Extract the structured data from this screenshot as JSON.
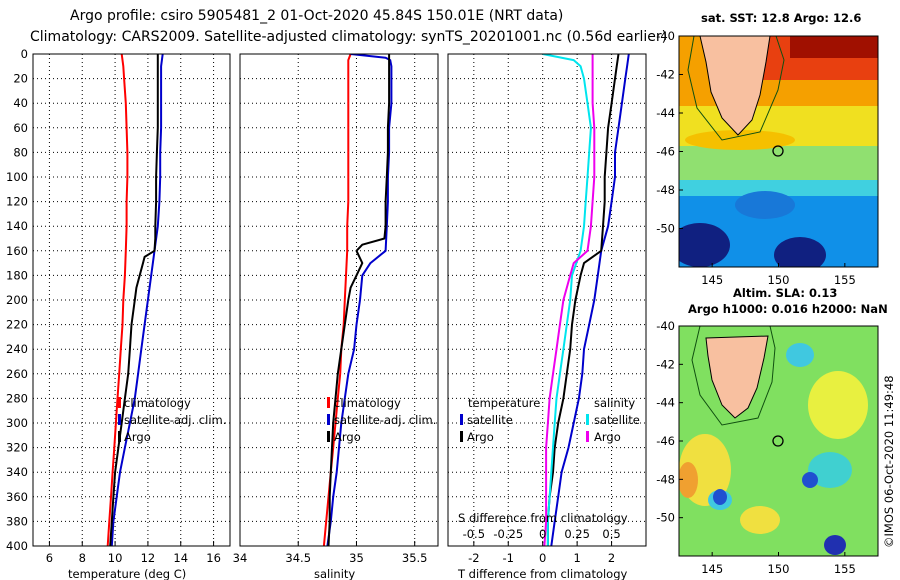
{
  "header": {
    "title_line1": "Argo profile: csiro 5905481_2 01-Oct-2020 45.84S 150.01E (NRT data)",
    "title_line2": "Climatology: CARS2009. Satellite-adjusted climatology: synTS_20201001.nc (0.56d earlier)"
  },
  "depth_axis": {
    "ticks": [
      0,
      20,
      40,
      60,
      80,
      100,
      120,
      140,
      160,
      180,
      200,
      220,
      240,
      260,
      280,
      300,
      320,
      340,
      360,
      380,
      400
    ],
    "ylim": [
      0,
      400
    ]
  },
  "colors": {
    "climatology": "#ff0000",
    "satellite": "#0000cc",
    "argo": "#000000",
    "satellite_s": "#00e5ee",
    "argo_s": "#ee00ee"
  },
  "chart_data": [
    {
      "type": "line",
      "id": "temperature",
      "xlabel": "temperature (deg C)",
      "xlim": [
        5,
        17
      ],
      "xticks": [
        6,
        8,
        10,
        12,
        14,
        16
      ],
      "ylim": [
        0,
        400
      ],
      "legend": [
        "climatology",
        "satellite-adj. clim.",
        "Argo"
      ],
      "series": [
        {
          "name": "climatology",
          "color": "#ff0000",
          "depth": [
            0,
            5,
            10,
            20,
            40,
            60,
            80,
            100,
            120,
            140,
            160,
            180,
            200,
            220,
            240,
            260,
            280,
            300,
            320,
            340,
            360,
            380,
            400
          ],
          "values": [
            10.4,
            10.45,
            10.5,
            10.55,
            10.65,
            10.7,
            10.75,
            10.75,
            10.7,
            10.7,
            10.65,
            10.6,
            10.5,
            10.45,
            10.35,
            10.25,
            10.15,
            10.05,
            9.95,
            9.85,
            9.75,
            9.65,
            9.55
          ]
        },
        {
          "name": "satellite-adj. clim.",
          "color": "#0000cc",
          "depth": [
            0,
            5,
            10,
            20,
            40,
            60,
            80,
            100,
            120,
            140,
            160,
            180,
            200,
            220,
            240,
            260,
            280,
            300,
            320,
            340,
            360,
            380,
            400
          ],
          "values": [
            12.9,
            12.85,
            12.8,
            12.8,
            12.8,
            12.8,
            12.75,
            12.75,
            12.7,
            12.6,
            12.4,
            12.2,
            12.0,
            11.8,
            11.6,
            11.4,
            11.2,
            10.9,
            10.6,
            10.3,
            10.1,
            9.9,
            9.8
          ]
        },
        {
          "name": "Argo",
          "color": "#000000",
          "depth": [
            0,
            5,
            10,
            20,
            40,
            60,
            80,
            100,
            120,
            140,
            150,
            160,
            165,
            170,
            180,
            190,
            200,
            220,
            240,
            260,
            280,
            300,
            320,
            340,
            360,
            380,
            400
          ],
          "values": [
            12.6,
            12.6,
            12.6,
            12.6,
            12.6,
            12.6,
            12.55,
            12.5,
            12.5,
            12.45,
            12.45,
            12.4,
            11.8,
            11.7,
            11.5,
            11.3,
            11.2,
            11.0,
            10.9,
            10.8,
            10.6,
            10.4,
            10.2,
            10.0,
            9.9,
            9.8,
            9.7
          ]
        }
      ]
    },
    {
      "type": "line",
      "id": "salinity",
      "xlabel": "salinity",
      "xlim": [
        34,
        35.7
      ],
      "xticks": [
        34,
        34.5,
        35,
        35.5
      ],
      "xtick_labels": [
        "34",
        "34.5",
        "35",
        "35.5"
      ],
      "ylim": [
        0,
        400
      ],
      "legend": [
        "climatology",
        "satellite-adj. clim.",
        "Argo"
      ],
      "series": [
        {
          "name": "climatology",
          "color": "#ff0000",
          "depth": [
            0,
            5,
            10,
            20,
            40,
            60,
            80,
            100,
            120,
            140,
            160,
            180,
            200,
            220,
            240,
            260,
            280,
            300,
            320,
            340,
            360,
            380,
            400
          ],
          "values": [
            34.95,
            34.93,
            34.93,
            34.93,
            34.93,
            34.93,
            34.93,
            34.93,
            34.93,
            34.92,
            34.92,
            34.91,
            34.9,
            34.89,
            34.87,
            34.86,
            34.84,
            34.82,
            34.8,
            34.78,
            34.76,
            34.74,
            34.72
          ]
        },
        {
          "name": "satellite-adj. clim.",
          "color": "#0000cc",
          "depth": [
            0,
            3,
            5,
            10,
            20,
            40,
            60,
            80,
            100,
            120,
            140,
            160,
            170,
            180,
            200,
            220,
            240,
            260,
            280,
            300,
            320,
            340,
            360,
            380,
            400
          ],
          "values": [
            34.95,
            35.25,
            35.29,
            35.3,
            35.3,
            35.3,
            35.28,
            35.28,
            35.27,
            35.27,
            35.26,
            35.25,
            35.12,
            35.05,
            35.03,
            35.0,
            34.98,
            34.93,
            34.9,
            34.87,
            34.85,
            34.83,
            34.8,
            34.78,
            34.75
          ]
        },
        {
          "name": "Argo",
          "color": "#000000",
          "depth": [
            0,
            10,
            20,
            40,
            60,
            80,
            100,
            120,
            140,
            150,
            155,
            160,
            170,
            180,
            190,
            200,
            220,
            240,
            260,
            280,
            300,
            320,
            340,
            360,
            380,
            400
          ],
          "values": [
            35.28,
            35.28,
            35.28,
            35.28,
            35.27,
            35.27,
            35.26,
            35.25,
            35.25,
            35.24,
            35.05,
            35.0,
            35.05,
            35.0,
            34.95,
            34.93,
            34.9,
            34.87,
            34.84,
            34.82,
            34.8,
            34.79,
            34.78,
            34.77,
            34.77,
            34.76
          ]
        }
      ]
    },
    {
      "type": "line",
      "id": "difference",
      "xlabel": "T difference from climatology",
      "xlabel_top": "S difference from climatology",
      "xlim": [
        -2.75,
        3.0
      ],
      "xticks": [
        -2,
        -1,
        0,
        1,
        2
      ],
      "xticks_top_labels": [
        "-0.5",
        "-0.25",
        "0",
        "0.25",
        "0.5"
      ],
      "ylim": [
        0,
        400
      ],
      "legend_left_title": "temperature",
      "legend_right_title": "salinity",
      "legend": [
        "satellite",
        "Argo",
        "satellite",
        "Argo"
      ],
      "series": [
        {
          "name": "T satellite",
          "color": "#0000cc",
          "depth": [
            0,
            10,
            20,
            40,
            60,
            80,
            100,
            120,
            140,
            160,
            180,
            200,
            220,
            240,
            260,
            280,
            300,
            320,
            340,
            360,
            380,
            400
          ],
          "values": [
            2.5,
            2.45,
            2.4,
            2.3,
            2.2,
            2.1,
            2.1,
            2.0,
            1.9,
            1.7,
            1.6,
            1.5,
            1.35,
            1.2,
            1.15,
            1.05,
            0.9,
            0.75,
            0.55,
            0.45,
            0.35,
            0.25
          ]
        },
        {
          "name": "T Argo",
          "color": "#000000",
          "depth": [
            0,
            10,
            20,
            40,
            60,
            80,
            100,
            120,
            140,
            160,
            170,
            180,
            200,
            220,
            240,
            260,
            280,
            300,
            320,
            340,
            360,
            380,
            400
          ],
          "values": [
            2.2,
            2.15,
            2.1,
            2.0,
            1.9,
            1.85,
            1.8,
            1.8,
            1.75,
            1.7,
            1.2,
            1.1,
            0.95,
            0.85,
            0.8,
            0.7,
            0.6,
            0.45,
            0.35,
            0.3,
            0.2,
            0.15,
            0.15
          ]
        },
        {
          "name": "S satellite",
          "color": "#00e5ee",
          "depth": [
            0,
            5,
            10,
            20,
            40,
            60,
            80,
            100,
            120,
            140,
            160,
            180,
            200,
            220,
            240,
            260,
            280,
            300,
            320,
            340,
            360,
            380,
            400
          ],
          "values": [
            0.0,
            0.9,
            1.1,
            1.2,
            1.3,
            1.4,
            1.35,
            1.3,
            1.25,
            1.2,
            1.1,
            0.85,
            0.8,
            0.7,
            0.6,
            0.5,
            0.4,
            0.35,
            0.3,
            0.25,
            0.2,
            0.15,
            0.15
          ]
        },
        {
          "name": "S Argo",
          "color": "#ee00ee",
          "depth": [
            0,
            10,
            20,
            40,
            60,
            80,
            100,
            120,
            140,
            160,
            170,
            180,
            200,
            220,
            240,
            260,
            280,
            300,
            320,
            340,
            360,
            380,
            400
          ],
          "values": [
            1.45,
            1.45,
            1.45,
            1.45,
            1.5,
            1.5,
            1.5,
            1.45,
            1.4,
            1.3,
            0.9,
            0.8,
            0.6,
            0.5,
            0.4,
            0.3,
            0.2,
            0.15,
            0.1,
            0.1,
            0.1,
            0.1,
            0.05
          ]
        }
      ]
    }
  ],
  "maps": [
    {
      "id": "sst_map",
      "title": "sat. SST: 12.8 Argo: 12.6",
      "yticks": [
        -40,
        -42,
        -44,
        -46,
        -48,
        -50
      ],
      "xticks": [
        145,
        150,
        155
      ],
      "lon_range": [
        142.5,
        157.5
      ],
      "lat_range": [
        -52,
        -40
      ],
      "marker": {
        "lon": 150.01,
        "lat": -45.84
      }
    },
    {
      "id": "sla_map",
      "title": "Altim. SLA: 0.13",
      "title2": "Argo h1000: 0.016 h2000: NaN",
      "yticks": [
        -40,
        -42,
        -44,
        -46,
        -48,
        -50
      ],
      "xticks": [
        145,
        150,
        155
      ],
      "lon_range": [
        142.5,
        157.5
      ],
      "lat_range": [
        -52,
        -40
      ],
      "marker": {
        "lon": 150.01,
        "lat": -45.84
      }
    }
  ],
  "footer": {
    "credit": "©IMOS 06-Oct-2020 11:49:48"
  }
}
